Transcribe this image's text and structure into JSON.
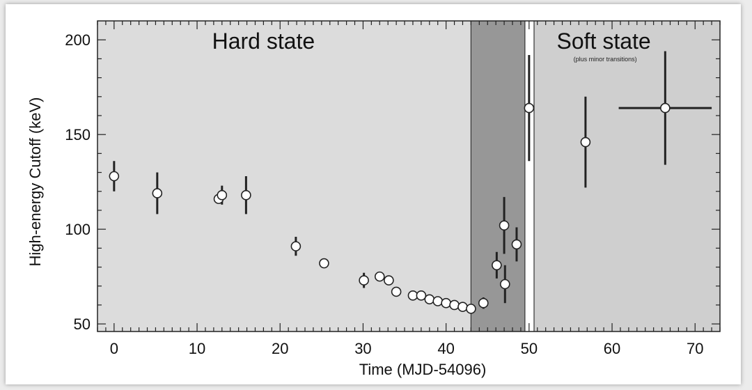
{
  "chart_data": {
    "type": "scatter",
    "title": "",
    "xlabel": "Time (MJD-54096)",
    "ylabel": "High-energy Cutoff (keV)",
    "xlim": [
      -2,
      73
    ],
    "ylim": [
      46,
      210
    ],
    "x_ticks": [
      0,
      10,
      20,
      30,
      40,
      50,
      60,
      70
    ],
    "y_ticks": [
      50,
      100,
      150,
      200
    ],
    "grid": false,
    "colors": {
      "hard_region": "#dcdcdc",
      "transition_region": "#979797",
      "soft_region": "#cfcfcf",
      "gap": "#ffffff",
      "marker_fill": "#ffffff",
      "marker_stroke": "#222222",
      "error_bar": "#222222"
    },
    "regions": [
      {
        "name": "hard",
        "x_from": -2,
        "x_to": 43.0,
        "label": "Hard state",
        "sublabel": ""
      },
      {
        "name": "transition",
        "x_from": 43.0,
        "x_to": 49.5,
        "label": "",
        "sublabel": ""
      },
      {
        "name": "gap",
        "x_from": 49.5,
        "x_to": 50.6,
        "label": "",
        "sublabel": ""
      },
      {
        "name": "soft",
        "x_from": 50.6,
        "x_to": 73,
        "label": "Soft state",
        "sublabel": "(plus minor transitions)"
      }
    ],
    "points": [
      {
        "x": 0.0,
        "y": 128,
        "yerr": 8,
        "xerr": 0
      },
      {
        "x": 5.2,
        "y": 119,
        "yerr": 11,
        "xerr": 0
      },
      {
        "x": 12.6,
        "y": 116,
        "yerr": 0,
        "xerr": 0
      },
      {
        "x": 13.0,
        "y": 118,
        "yerr": 5,
        "xerr": 0
      },
      {
        "x": 15.9,
        "y": 118,
        "yerr": 10,
        "xerr": 0
      },
      {
        "x": 21.9,
        "y": 91,
        "yerr": 5,
        "xerr": 0
      },
      {
        "x": 25.3,
        "y": 82,
        "yerr": 0,
        "xerr": 0
      },
      {
        "x": 30.1,
        "y": 73,
        "yerr": 4,
        "xerr": 0
      },
      {
        "x": 32.0,
        "y": 75,
        "yerr": 0,
        "xerr": 0
      },
      {
        "x": 33.1,
        "y": 73,
        "yerr": 0,
        "xerr": 0
      },
      {
        "x": 34.0,
        "y": 67,
        "yerr": 0,
        "xerr": 0
      },
      {
        "x": 36.0,
        "y": 65,
        "yerr": 0,
        "xerr": 0
      },
      {
        "x": 37.0,
        "y": 65,
        "yerr": 0,
        "xerr": 0
      },
      {
        "x": 38.0,
        "y": 63,
        "yerr": 0,
        "xerr": 0
      },
      {
        "x": 39.0,
        "y": 62,
        "yerr": 0,
        "xerr": 0
      },
      {
        "x": 40.0,
        "y": 61,
        "yerr": 0,
        "xerr": 0
      },
      {
        "x": 41.0,
        "y": 60,
        "yerr": 0,
        "xerr": 0
      },
      {
        "x": 42.0,
        "y": 59,
        "yerr": 0,
        "xerr": 0
      },
      {
        "x": 43.0,
        "y": 58,
        "yerr": 0,
        "xerr": 0
      },
      {
        "x": 44.5,
        "y": 61,
        "yerr": 3,
        "xerr": 0
      },
      {
        "x": 46.1,
        "y": 81,
        "yerr": 7,
        "xerr": 0
      },
      {
        "x": 47.0,
        "y": 102,
        "yerr": 15,
        "xerr": 0
      },
      {
        "x": 47.1,
        "y": 71,
        "yerr": 10,
        "xerr": 0
      },
      {
        "x": 48.5,
        "y": 92,
        "yerr": 9,
        "xerr": 0
      },
      {
        "x": 50.0,
        "y": 164,
        "yerr": 28,
        "xerr": 0
      },
      {
        "x": 56.8,
        "y": 146,
        "yerr": 24,
        "xerr": 0
      },
      {
        "x": 66.4,
        "y": 164,
        "yerr": 30,
        "xerr": 5.6
      }
    ]
  }
}
